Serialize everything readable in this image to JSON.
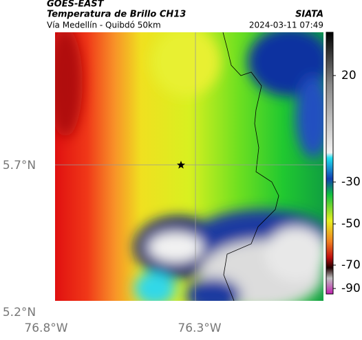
{
  "header": {
    "source": "GOES-EAST",
    "title": "Temperatura de Brillo CH13",
    "org": "SIATA",
    "subtitle": "Vía Medellín - Quibdó 50km",
    "datetime": "2024-03-11 07:49"
  },
  "axes": {
    "lat_labels": [
      "5.7°N",
      "5.2°N"
    ],
    "lon_labels": [
      "76.8°W",
      "76.3°W"
    ]
  },
  "colorbar": {
    "ticks": [
      20,
      -30,
      -50,
      -70,
      -90
    ]
  }
}
